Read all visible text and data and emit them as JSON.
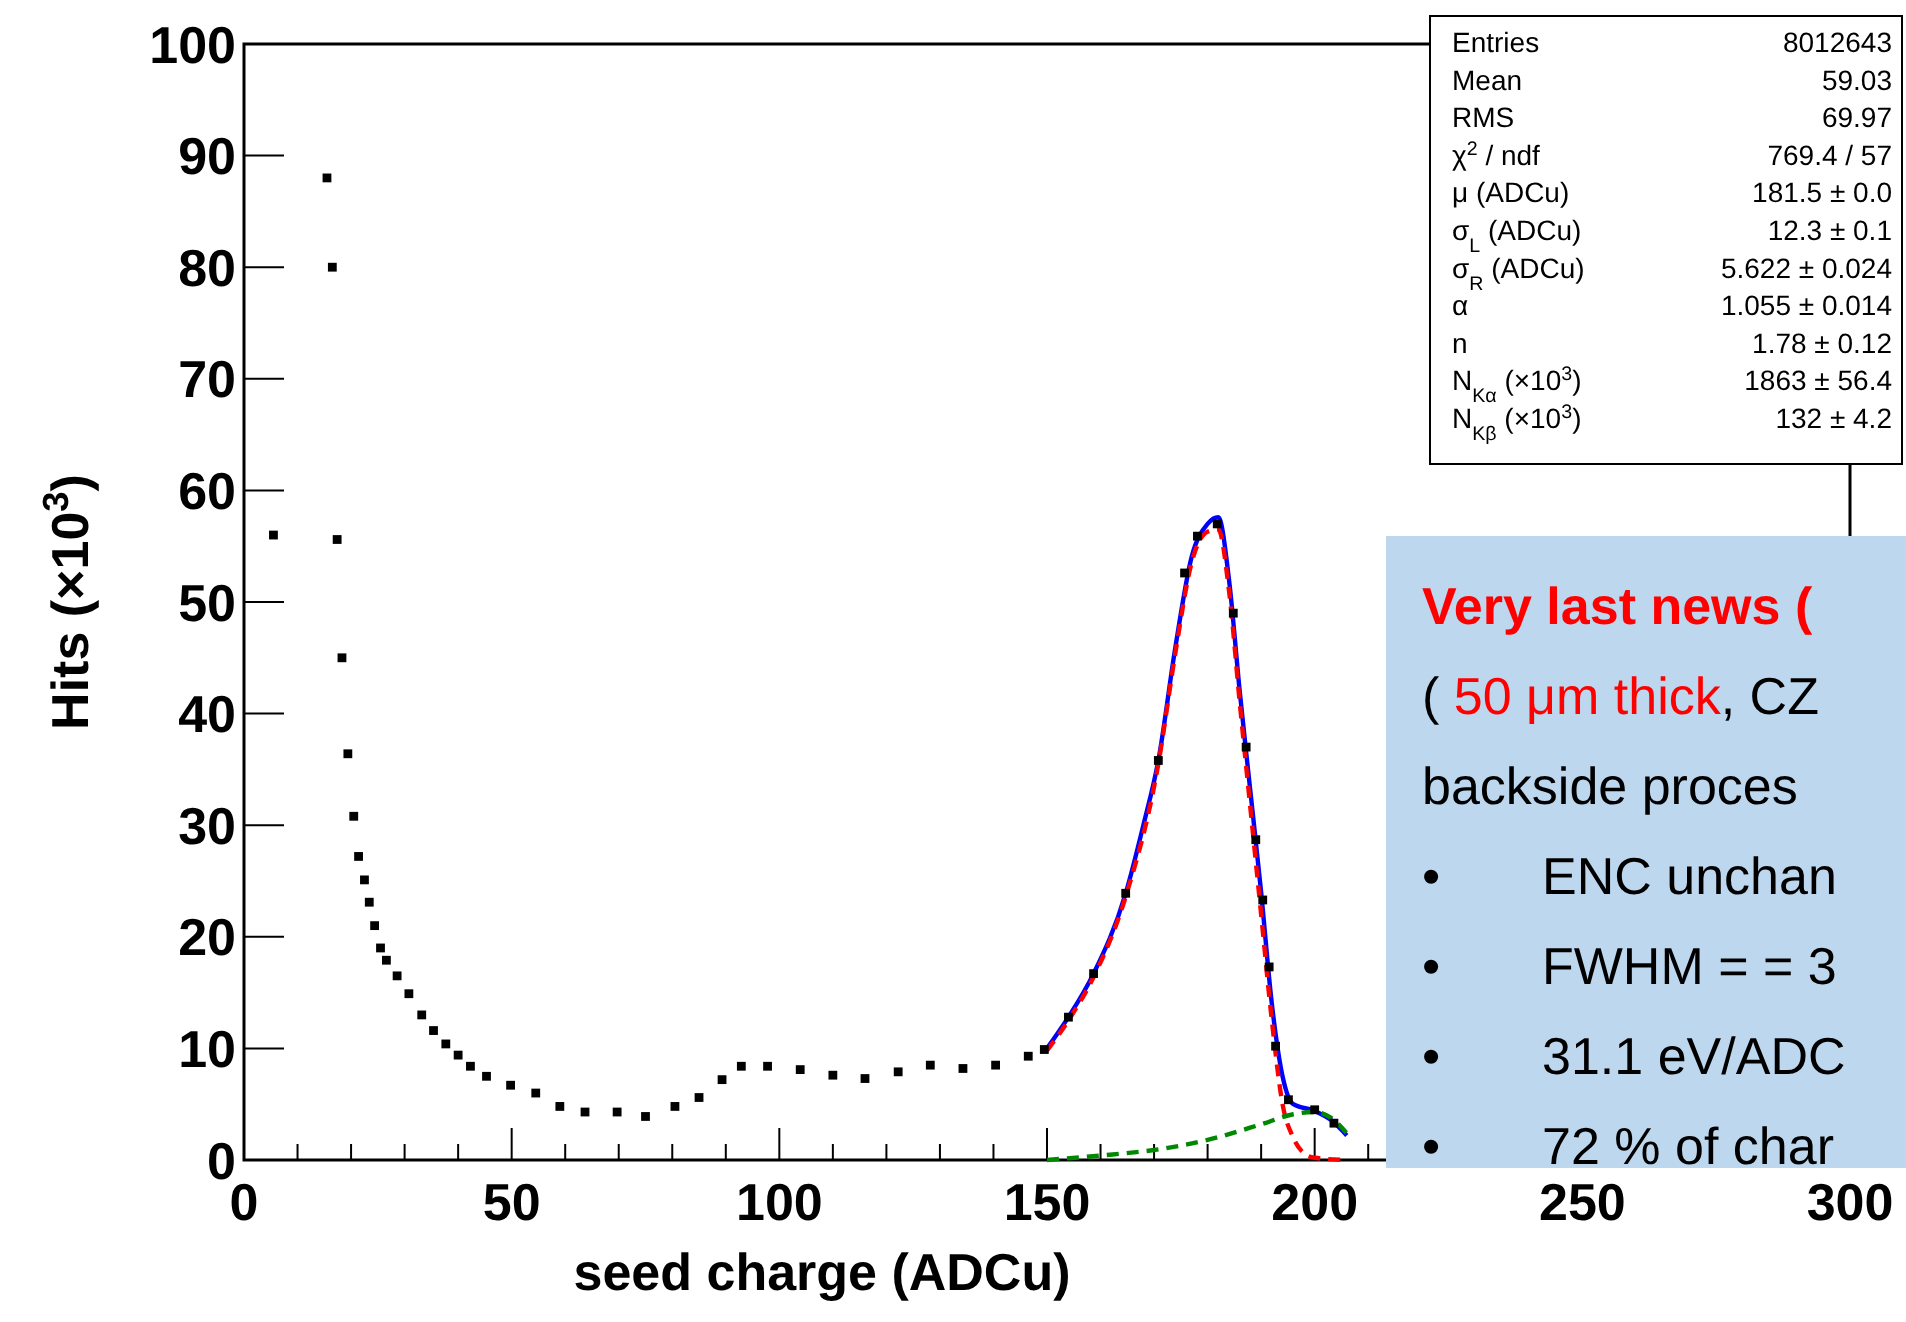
{
  "chart_data": {
    "type": "scatter",
    "xlabel": "seed charge (ADCu)",
    "ylabel": "Hits (×10$^{3}$)",
    "xlim": [
      0,
      300
    ],
    "xticks": [
      0,
      {
        "value": 10,
        "label": null
      },
      {
        "value": 20,
        "label": null
      },
      {
        "value": 30,
        "label": null
      },
      {
        "value": 40,
        "label": null
      },
      50,
      {
        "value": 60,
        "label": null
      },
      {
        "value": 70,
        "label": null
      },
      {
        "value": 80,
        "label": null
      },
      {
        "value": 90,
        "label": null
      },
      100,
      {
        "value": 110,
        "label": null
      },
      {
        "value": 120,
        "label": null
      },
      {
        "value": 130,
        "label": null
      },
      {
        "value": 140,
        "label": null
      },
      150,
      {
        "value": 160,
        "label": null
      },
      {
        "value": 170,
        "label": null
      },
      {
        "value": 180,
        "label": null
      },
      {
        "value": 190,
        "label": null
      },
      200,
      {
        "value": 210,
        "label": null
      },
      {
        "value": 220,
        "label": null
      },
      {
        "value": 230,
        "label": null
      },
      {
        "value": 240,
        "label": null
      },
      250,
      {
        "value": 260,
        "label": null
      },
      {
        "value": 270,
        "label": null
      },
      {
        "value": 280,
        "label": null
      },
      {
        "value": 290,
        "label": null
      },
      300
    ],
    "ylim": [
      0,
      100
    ],
    "yticks": [
      0,
      10,
      20,
      30,
      40,
      50,
      60,
      70,
      80,
      90,
      100
    ],
    "grid": false,
    "legend": false,
    "series": [
      {
        "type": "scatter",
        "color": "#000000",
        "marker": "square",
        "x": [
          5.5,
          15.5,
          16.5,
          17.4,
          18.3,
          19.4,
          20.5,
          21.4,
          22.5,
          23.4,
          24.4,
          25.5,
          26.6,
          28.6,
          30.8,
          33.2,
          35.4,
          37.7,
          40,
          42.3,
          45.3,
          49.8,
          54.5,
          59,
          63.7,
          69.7,
          75,
          80.5,
          85,
          89.3,
          92.9,
          97.8,
          103.9,
          110,
          116,
          122.2,
          128.2,
          134.3,
          140.4,
          146.5,
          149.5,
          154,
          158.7,
          164.7,
          170.8,
          175.7,
          178.1,
          181.8,
          184.8,
          187.2,
          189,
          190.3,
          191.5,
          192.7,
          195.1,
          200,
          203.6
        ],
        "values": [
          56,
          88,
          80,
          55.6,
          45,
          36.4,
          30.8,
          27.2,
          25.1,
          23.1,
          21,
          19,
          17.9,
          16.5,
          14.9,
          13,
          11.6,
          10.4,
          9.4,
          8.4,
          7.5,
          6.7,
          6,
          4.8,
          4.3,
          4.3,
          3.9,
          4.8,
          5.6,
          7.2,
          8.4,
          8.4,
          8.1,
          7.6,
          7.3,
          7.9,
          8.5,
          8.2,
          8.5,
          9.3,
          9.9,
          12.8,
          16.7,
          23.9,
          35.8,
          52.6,
          55.9,
          57,
          49,
          37,
          28.7,
          23.3,
          17.3,
          10.2,
          5.4,
          4.5,
          3.3
        ]
      },
      {
        "type": "line",
        "color": "#0000ff",
        "line_style": "solid",
        "x": [
          150,
          154,
          158.7,
          164.7,
          168,
          170.8,
          174,
          177,
          180,
          182,
          184,
          186,
          188,
          190,
          192,
          194,
          196,
          200,
          203,
          206
        ],
        "values": [
          10,
          12.8,
          16.7,
          23.9,
          30,
          35.8,
          46,
          54,
          57,
          57.6,
          52,
          42,
          33,
          24,
          14,
          7.5,
          5,
          4.4,
          3.6,
          2.2
        ]
      },
      {
        "type": "line",
        "color": "#ff0000",
        "line_style": "dashed",
        "x": [
          150,
          154,
          158.7,
          164.7,
          170.8,
          174,
          177,
          180,
          182,
          184,
          186,
          188,
          190,
          192,
          194,
          196,
          198,
          200,
          206
        ],
        "values": [
          9.8,
          12.5,
          16.4,
          23.6,
          35.5,
          45.5,
          53.5,
          56.3,
          56.5,
          51,
          41,
          31.5,
          22,
          12.5,
          5,
          2,
          0.6,
          0.2,
          0
        ]
      },
      {
        "type": "line",
        "color": "#008800",
        "line_style": "dashed",
        "x": [
          150,
          160,
          170,
          180,
          190,
          196,
          200,
          203,
          206
        ],
        "values": [
          0,
          0.4,
          0.9,
          1.8,
          3.2,
          4.1,
          4.3,
          3.8,
          2.4
        ]
      }
    ],
    "annotations": [
      "Entries\t8012643",
      "Mean\t59.03",
      "RMS\t69.97",
      "χ$^{2}$ / ndf\t769.4 / 57",
      "μ (ADCu)\t181.5 ± 0.0",
      "σ$_{L}$ (ADCu)\t12.3 ± 0.1",
      "σ$_{R}$ (ADCu)\t5.622 ± 0.024",
      "α\t1.055 ± 0.014",
      "n\t1.78 ± 0.12",
      "N$_{Kα}$ (×10$^{3}$)\t1863 ± 56.4",
      "N$_{Kβ}$ (×10$^{3}$)\t132 ± 4.2",
      "Very last news (",
      "( 50 μm thick, CZ",
      "backside proces",
      "•\tENC unchan",
      "•\tFWHM = = 3",
      "•\t31.1 eV/ADC",
      "•\t72 % of char"
    ]
  }
}
